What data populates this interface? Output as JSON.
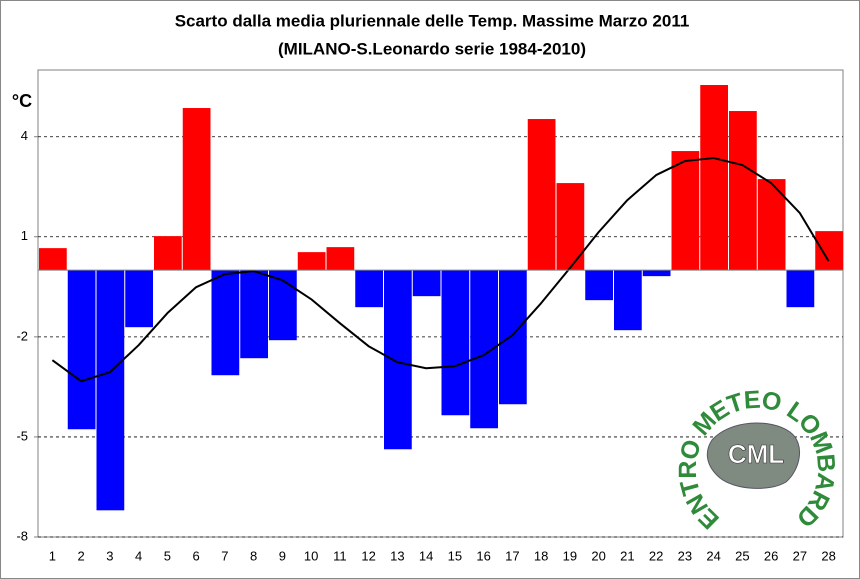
{
  "chart_data": {
    "type": "bar",
    "title": "Scarto dalla media pluriennale delle Temp. Massime Marzo 2011",
    "subtitle": "(MILANO-S.Leonardo serie 1984-2010)",
    "y_unit": "°C",
    "categories": [
      1,
      2,
      3,
      4,
      5,
      6,
      7,
      8,
      9,
      10,
      11,
      12,
      13,
      14,
      15,
      16,
      17,
      18,
      19,
      20,
      21,
      22,
      23,
      24,
      25,
      26,
      27,
      28
    ],
    "series": [
      {
        "type": "bar",
        "positive_color": "#ff0000",
        "negative_color": "#0000ff",
        "values": [
          0.66,
          -4.77,
          -7.2,
          -1.71,
          1.02,
          4.86,
          -3.15,
          -2.64,
          -2.1,
          0.54,
          0.69,
          -1.11,
          -5.37,
          -0.78,
          -4.35,
          -4.74,
          -4.02,
          4.53,
          2.61,
          -0.9,
          -1.8,
          -0.18,
          3.57,
          5.55,
          4.77,
          2.73,
          -1.11,
          1.17
        ]
      },
      {
        "type": "line",
        "color": "#000000",
        "values": [
          -2.7,
          -3.33,
          -3.06,
          -2.25,
          -1.29,
          -0.51,
          -0.12,
          -0.03,
          -0.3,
          -0.87,
          -1.59,
          -2.28,
          -2.76,
          -2.94,
          -2.88,
          -2.55,
          -1.95,
          -0.99,
          0.06,
          1.14,
          2.1,
          2.85,
          3.27,
          3.36,
          3.15,
          2.61,
          1.71,
          0.27
        ]
      }
    ],
    "ylim": [
      -8,
      6
    ],
    "yticks": [
      -8,
      -5,
      -2,
      1,
      4
    ],
    "grid": true,
    "logo": {
      "ring_text": "CENTRO METEO LOMBARDO",
      "initials": "CML"
    }
  }
}
